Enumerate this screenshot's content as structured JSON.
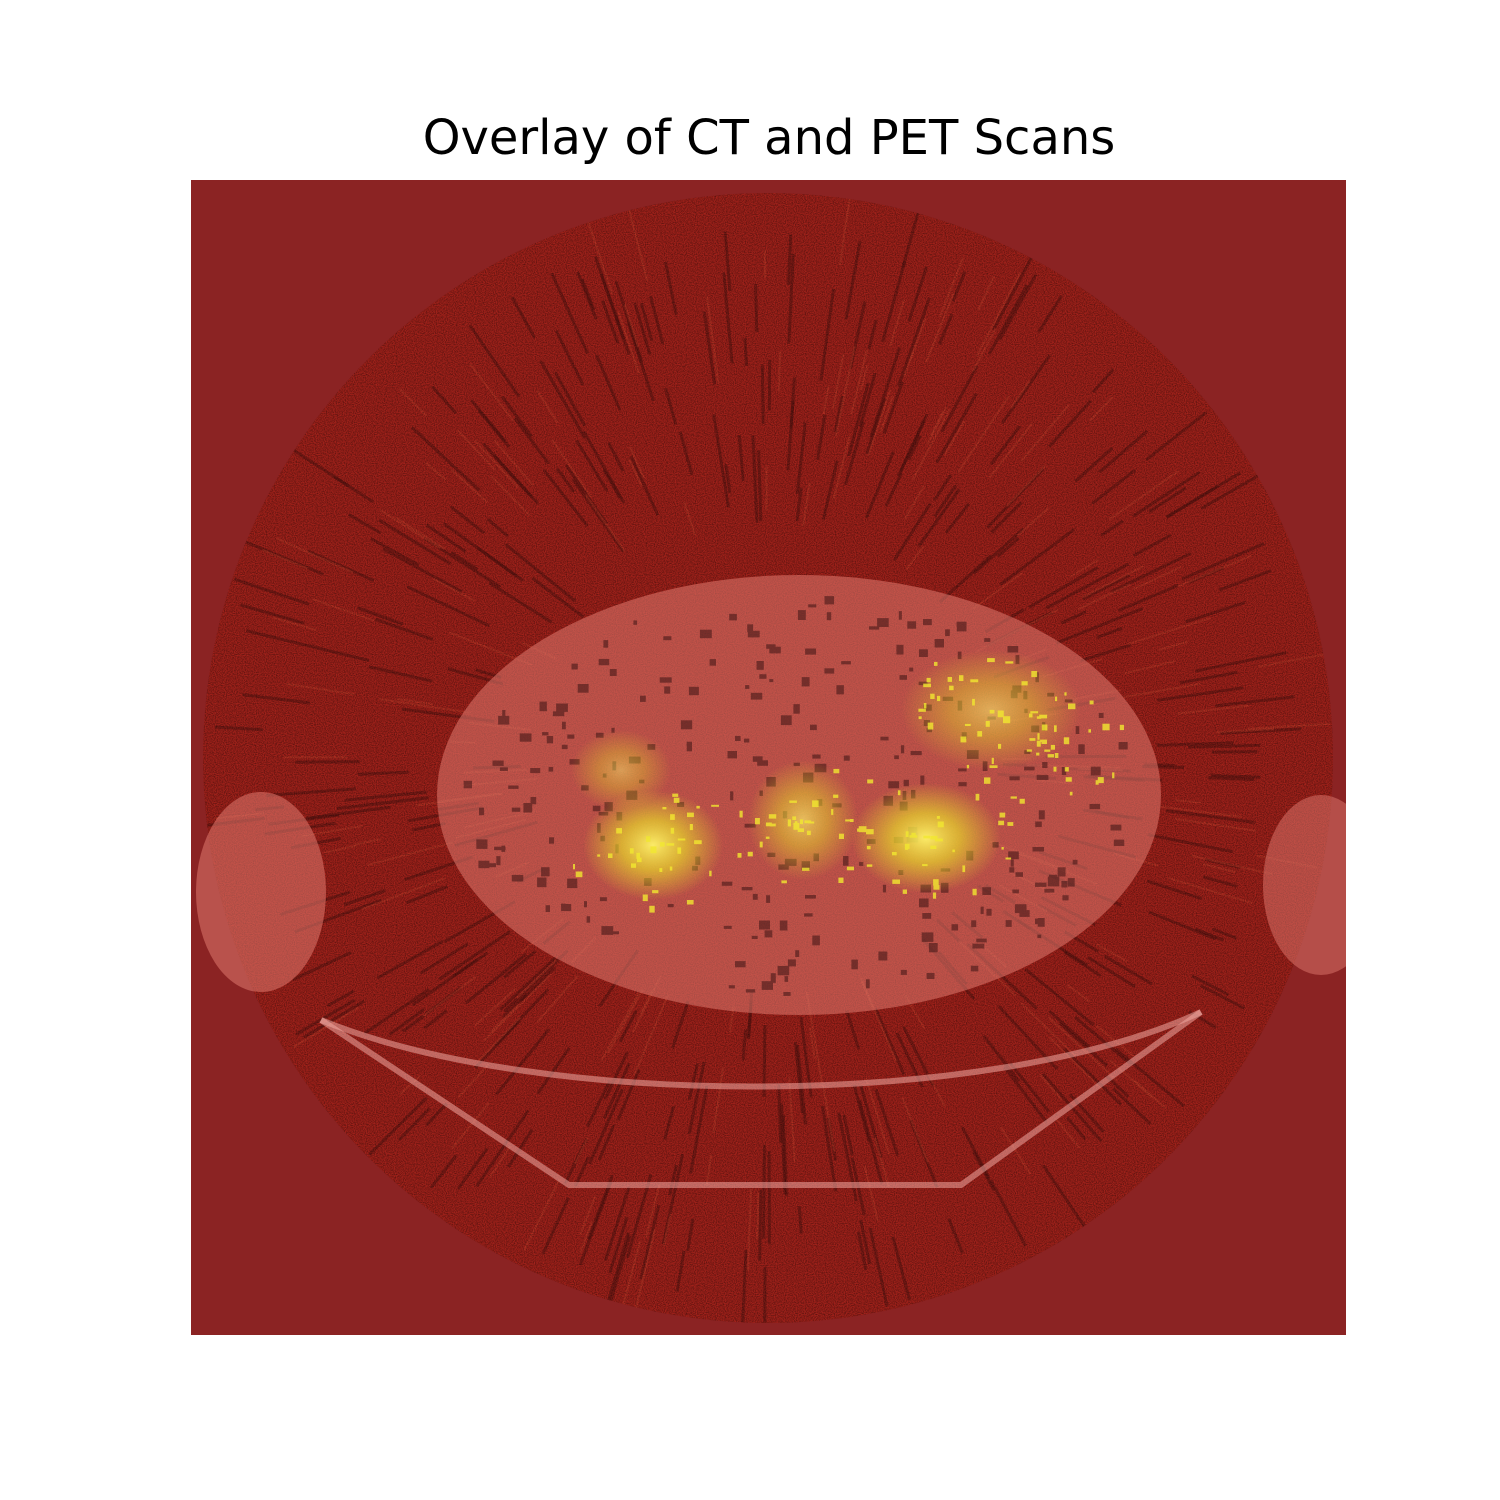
{
  "figure": {
    "title": "Overlay of CT and PET Scans"
  },
  "image": {
    "description_icon": "ct-pet-overlay-image",
    "colors": {
      "background": "#8b2323",
      "pet_base": "#a0201a",
      "pet_hot": "#f2e830",
      "ct_soft_tissue": "#e89090",
      "ct_edge": "#f4b4b4"
    }
  }
}
